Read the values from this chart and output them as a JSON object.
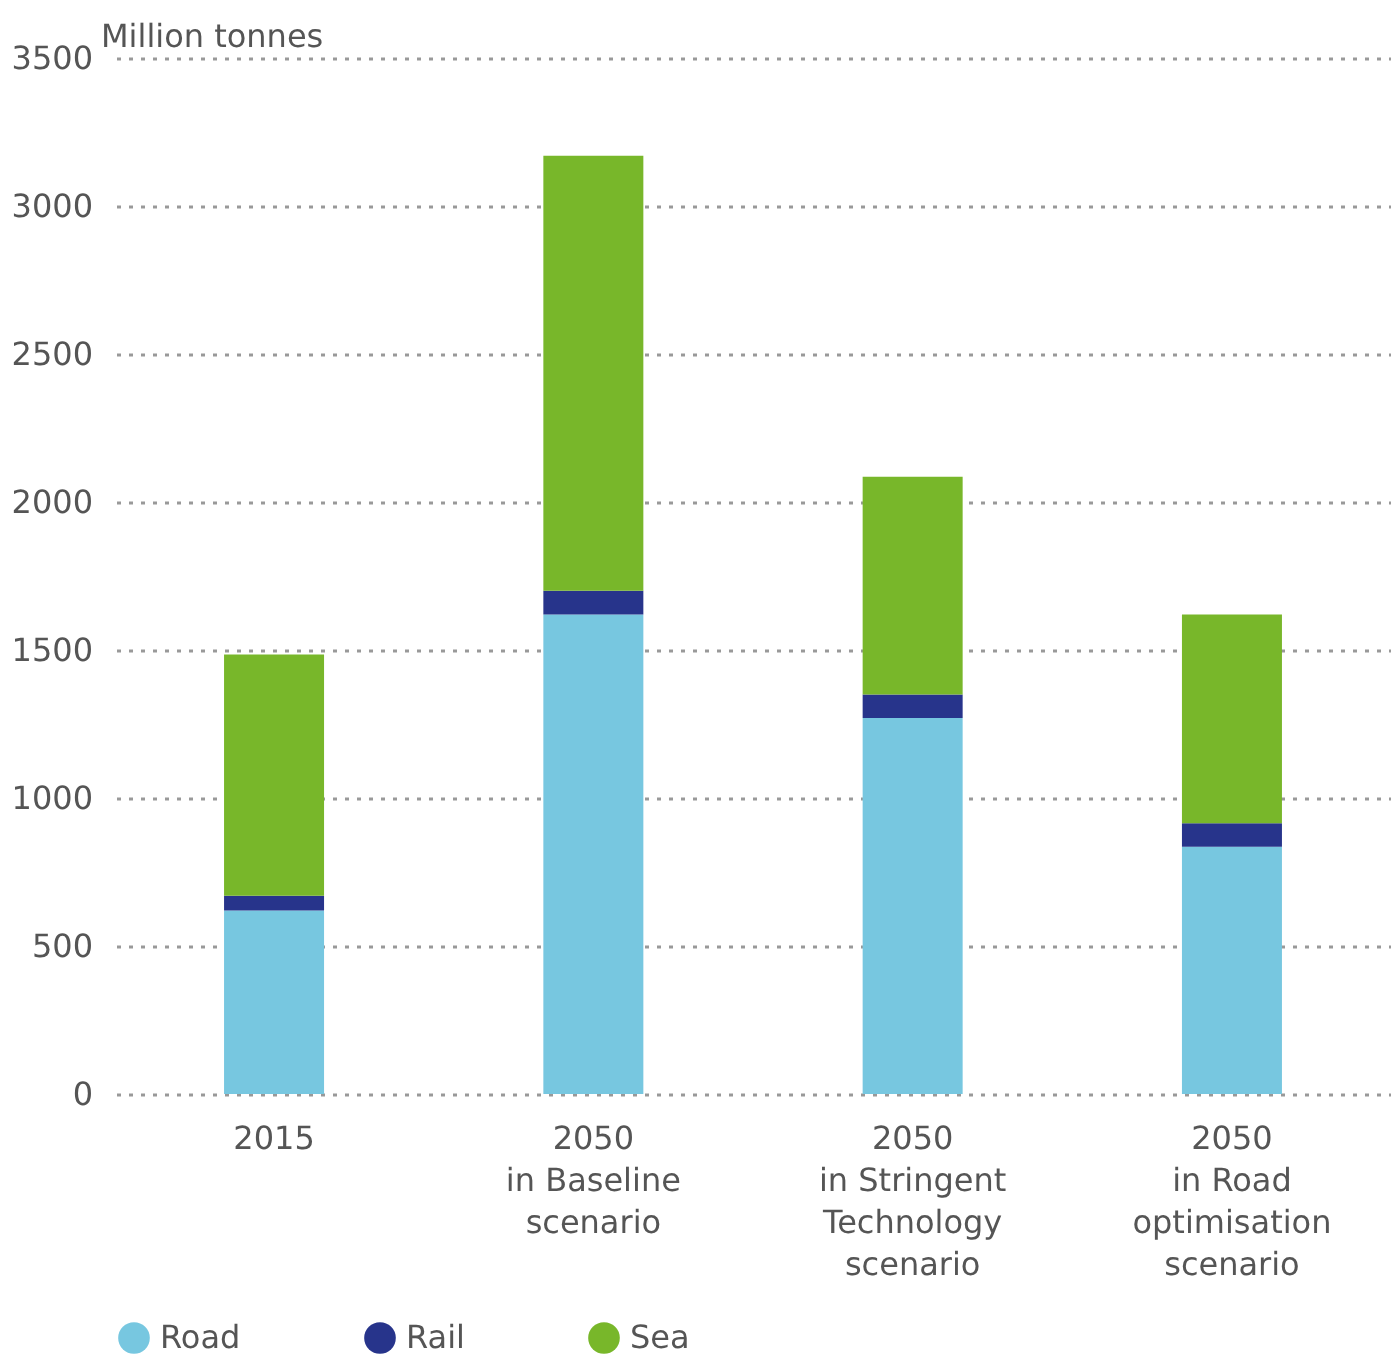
{
  "chart_data": {
    "type": "bar",
    "stacked": true,
    "ylabel": "Million tonnes",
    "categories": [
      "2015",
      "2050\nin Baseline\nscenario",
      "2050\nin Stringent\nTechnology\nscenario",
      "2050\nin Road\noptimisation\nscenario"
    ],
    "series": [
      {
        "name": "Road",
        "color": "#77c7e0",
        "values": [
          620,
          1620,
          1270,
          835
        ]
      },
      {
        "name": "Rail",
        "color": "#27348b",
        "values": [
          50,
          80,
          80,
          80
        ]
      },
      {
        "name": "Sea",
        "color": "#78b72a",
        "values": [
          815,
          1470,
          735,
          705
        ]
      }
    ],
    "ylim": [
      0,
      3500
    ],
    "yticks": [
      0,
      500,
      1000,
      1500,
      2000,
      2500,
      3000,
      3500
    ],
    "grid": "y",
    "legend": "bottom"
  }
}
